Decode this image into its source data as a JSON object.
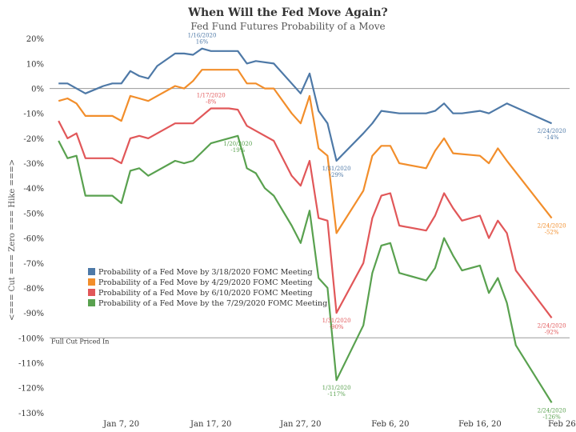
{
  "chart_data": {
    "type": "line",
    "title": "When Will the Fed Move Again?",
    "subtitle": "Fed Fund Futures Probability of a Move",
    "ylabel": "<=== Cut === Zero === Hike ===>",
    "ylim": [
      -132,
      22
    ],
    "yticks": [
      20,
      10,
      0,
      -10,
      -20,
      -30,
      -40,
      -50,
      -60,
      -70,
      -80,
      -90,
      -100,
      -110,
      -120,
      -130
    ],
    "ytick_labels": [
      "20%",
      "10%",
      "0%",
      "-10%",
      "-20%",
      "-30%",
      "-40%",
      "-50%",
      "-60%",
      "-70%",
      "-80%",
      "-90%",
      "-100%",
      "-110%",
      "-120%",
      "-130%"
    ],
    "xlim": [
      "2019-12-30",
      "2020-02-26"
    ],
    "xticks": [
      "2020-01-07",
      "2020-01-17",
      "2020-01-27",
      "2020-02-06",
      "2020-02-16",
      "2020-02-26"
    ],
    "xtick_labels": [
      "Jan 7, 20",
      "Jan 17, 20",
      "Jan 27, 20",
      "Feb 6, 20",
      "Feb 16, 20",
      "Feb 26, 20"
    ],
    "reference_line": {
      "y": -100,
      "label": "Full Cut Priced In"
    },
    "grid": false,
    "legend_position": "lower-left",
    "series": [
      {
        "name": "Probability of a Fed Move by 3/18/2020 FOMC Meeting",
        "color": "#4e79a7",
        "x": [
          "2019-12-31",
          "2020-01-01",
          "2020-01-02",
          "2020-01-03",
          "2020-01-05",
          "2020-01-06",
          "2020-01-07",
          "2020-01-08",
          "2020-01-09",
          "2020-01-10",
          "2020-01-11",
          "2020-01-13",
          "2020-01-14",
          "2020-01-15",
          "2020-01-16",
          "2020-01-17",
          "2020-01-18",
          "2020-01-20",
          "2020-01-21",
          "2020-01-22",
          "2020-01-24",
          "2020-01-26",
          "2020-01-27",
          "2020-01-28",
          "2020-01-29",
          "2020-01-30",
          "2020-01-31",
          "2020-02-03",
          "2020-02-04",
          "2020-02-05",
          "2020-02-07",
          "2020-02-09",
          "2020-02-10",
          "2020-02-11",
          "2020-02-12",
          "2020-02-13",
          "2020-02-14",
          "2020-02-16",
          "2020-02-17",
          "2020-02-19",
          "2020-02-24"
        ],
        "y": [
          2,
          2,
          0,
          -2,
          1,
          2,
          2,
          7,
          5,
          4,
          9,
          14,
          14,
          13.5,
          16,
          15,
          15,
          15,
          10,
          11,
          10,
          2,
          -2,
          6,
          -9,
          -14,
          -29,
          -18,
          -14,
          -9,
          -10,
          -10,
          -10,
          -9,
          -6,
          -10,
          -10,
          -9,
          -10,
          -6,
          -14
        ],
        "annotations": [
          {
            "x": "2020-01-16",
            "y": 16,
            "text": "1/16/2020\n16%"
          },
          {
            "x": "2020-01-31",
            "y": -29,
            "text": "1/31/2020\n-29%"
          },
          {
            "x": "2020-02-24",
            "y": -14,
            "text": "2/24/2020\n-14%"
          }
        ]
      },
      {
        "name": "Probability of a Fed Move by 4/29/2020 FOMC Meeting",
        "color": "#f28e2b",
        "x": [
          "2019-12-31",
          "2020-01-01",
          "2020-01-02",
          "2020-01-03",
          "2020-01-05",
          "2020-01-06",
          "2020-01-07",
          "2020-01-08",
          "2020-01-09",
          "2020-01-10",
          "2020-01-13",
          "2020-01-14",
          "2020-01-15",
          "2020-01-16",
          "2020-01-17",
          "2020-01-18",
          "2020-01-20",
          "2020-01-21",
          "2020-01-22",
          "2020-01-23",
          "2020-01-24",
          "2020-01-26",
          "2020-01-27",
          "2020-01-28",
          "2020-01-29",
          "2020-01-30",
          "2020-01-31",
          "2020-02-03",
          "2020-02-04",
          "2020-02-05",
          "2020-02-06",
          "2020-02-07",
          "2020-02-10",
          "2020-02-11",
          "2020-02-12",
          "2020-02-13",
          "2020-02-16",
          "2020-02-17",
          "2020-02-18",
          "2020-02-19",
          "2020-02-24"
        ],
        "y": [
          -5,
          -4,
          -6,
          -11,
          -11,
          -11,
          -13,
          -3,
          -4,
          -5,
          1,
          0,
          3,
          7.5,
          7.5,
          7.5,
          7.5,
          2,
          2,
          0,
          0,
          -10,
          -14,
          -3,
          -24,
          -27,
          -58,
          -41,
          -27,
          -23,
          -23,
          -30,
          -32,
          -25,
          -20,
          -26,
          -27,
          -30,
          -24,
          -29,
          -52
        ],
        "annotations": [
          {
            "x": "2020-01-17",
            "y": 7.5,
            "text": ""
          },
          {
            "x": "2020-02-24",
            "y": -52,
            "text": "2/24/2020\n-52%"
          }
        ]
      },
      {
        "name": "Probability of a Fed Move by 6/10/2020 FOMC Meeting",
        "color": "#e15759",
        "x": [
          "2019-12-31",
          "2020-01-01",
          "2020-01-02",
          "2020-01-03",
          "2020-01-05",
          "2020-01-06",
          "2020-01-07",
          "2020-01-08",
          "2020-01-09",
          "2020-01-10",
          "2020-01-13",
          "2020-01-14",
          "2020-01-15",
          "2020-01-17",
          "2020-01-19",
          "2020-01-20",
          "2020-01-21",
          "2020-01-22",
          "2020-01-24",
          "2020-01-26",
          "2020-01-27",
          "2020-01-28",
          "2020-01-29",
          "2020-01-30",
          "2020-01-31",
          "2020-02-03",
          "2020-02-04",
          "2020-02-05",
          "2020-02-06",
          "2020-02-07",
          "2020-02-10",
          "2020-02-11",
          "2020-02-12",
          "2020-02-13",
          "2020-02-14",
          "2020-02-16",
          "2020-02-17",
          "2020-02-18",
          "2020-02-19",
          "2020-02-20",
          "2020-02-24"
        ],
        "y": [
          -13,
          -20,
          -18,
          -28,
          -28,
          -28,
          -30,
          -20,
          -19,
          -20,
          -14,
          -14,
          -14,
          -8,
          -8,
          -8.5,
          -15,
          -17,
          -21,
          -35,
          -39,
          -29,
          -52,
          -53,
          -90,
          -70,
          -52,
          -43,
          -42,
          -55,
          -57,
          -51,
          -42,
          -48,
          -53,
          -51,
          -60,
          -53,
          -58,
          -73,
          -92
        ],
        "annotations": [
          {
            "x": "2020-01-17",
            "y": -8,
            "text": "1/17/2020\n-8%"
          },
          {
            "x": "2020-01-31",
            "y": -90,
            "text": "1/31/2020\n-90%"
          },
          {
            "x": "2020-02-24",
            "y": -92,
            "text": "2/24/2020\n-92%"
          }
        ]
      },
      {
        "name": "Probability of a Fed Move by the 7/29/2020 FOMC Meeting",
        "color": "#59a14f",
        "x": [
          "2019-12-31",
          "2020-01-01",
          "2020-01-02",
          "2020-01-03",
          "2020-01-06",
          "2020-01-07",
          "2020-01-08",
          "2020-01-09",
          "2020-01-10",
          "2020-01-13",
          "2020-01-14",
          "2020-01-15",
          "2020-01-17",
          "2020-01-20",
          "2020-01-21",
          "2020-01-22",
          "2020-01-23",
          "2020-01-24",
          "2020-01-26",
          "2020-01-27",
          "2020-01-28",
          "2020-01-29",
          "2020-01-30",
          "2020-01-31",
          "2020-02-03",
          "2020-02-04",
          "2020-02-05",
          "2020-02-06",
          "2020-02-07",
          "2020-02-10",
          "2020-02-11",
          "2020-02-12",
          "2020-02-13",
          "2020-02-14",
          "2020-02-16",
          "2020-02-17",
          "2020-02-18",
          "2020-02-19",
          "2020-02-20",
          "2020-02-24"
        ],
        "y": [
          -21,
          -28,
          -27,
          -43,
          -43,
          -46,
          -33,
          -32,
          -35,
          -29,
          -30,
          -29,
          -22,
          -19,
          -32,
          -34,
          -40,
          -43,
          -55,
          -62,
          -49,
          -76,
          -80,
          -117,
          -95,
          -74,
          -63,
          -62,
          -74,
          -77,
          -72,
          -60,
          -67,
          -73,
          -71,
          -82,
          -76,
          -86,
          -103,
          -126
        ],
        "annotations": [
          {
            "x": "2020-01-20",
            "y": -19,
            "text": "1/20/2020\n-19%"
          },
          {
            "x": "2020-01-31",
            "y": -117,
            "text": "1/31/2020\n-117%"
          },
          {
            "x": "2020-02-24",
            "y": -126,
            "text": "2/24/2020\n-126%"
          }
        ]
      }
    ]
  }
}
